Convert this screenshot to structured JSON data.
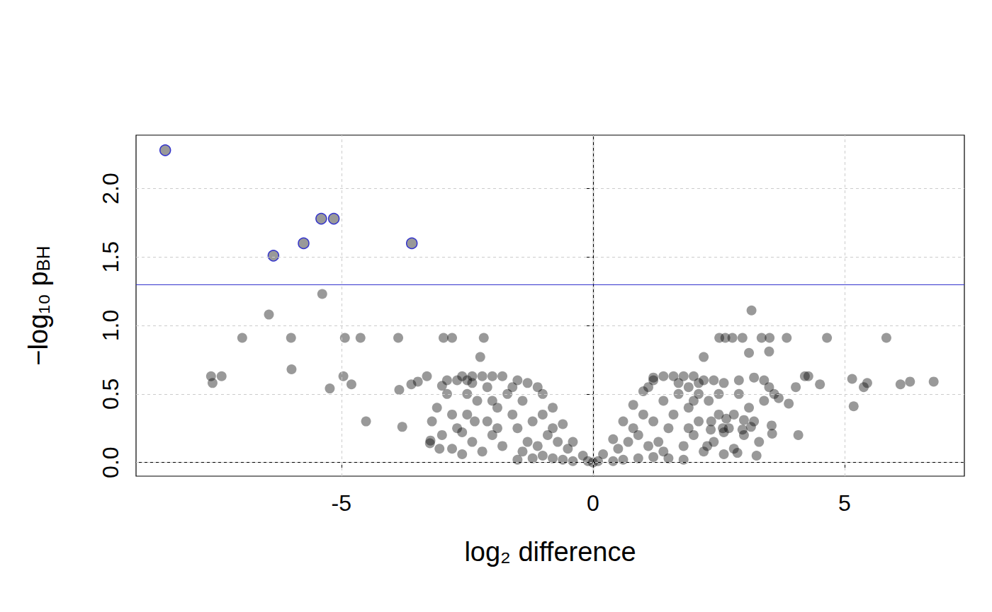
{
  "chart_data": {
    "type": "scatter",
    "xlabel": "log₂ difference",
    "ylabel": {
      "text": "−log₁₀ p",
      "subscript": "BH"
    },
    "xlim": [
      -9.08,
      7.38
    ],
    "xticks": [
      -5,
      0,
      5
    ],
    "ylim": [
      -0.1,
      2.39
    ],
    "yticks": [
      {
        "value": 0,
        "label": "0.0"
      },
      {
        "value": 0.5,
        "label": "0.5"
      },
      {
        "value": 1,
        "label": "1.0"
      },
      {
        "value": 1.5,
        "label": "1.5"
      },
      {
        "value": 2,
        "label": "2.0"
      }
    ],
    "grid": true,
    "threshold": {
      "y": 1.3,
      "color": "#3333cc"
    },
    "series": [
      {
        "color": "#000000",
        "marker": "circle",
        "x": [
          -6.44,
          -5.38,
          -6.97,
          -6.0,
          -4.93,
          -4.62,
          -3.87,
          -2.97,
          -2.8,
          -2.17,
          -2.24,
          -7.59,
          -7.56,
          -7.38,
          -5.99,
          -5.23,
          -4.96,
          -4.8,
          -4.51,
          -3.79,
          -3.85,
          -3.61,
          -3.48,
          -3.3,
          -3.23,
          -3.24,
          3.15,
          4.65,
          5.83,
          2.97,
          3.35,
          3.51,
          3.85,
          2.63,
          2.77,
          2.51,
          2.2,
          3.5,
          3.1,
          4.21,
          4.28,
          4.51,
          5.15,
          5.45,
          5.38,
          6.11,
          6.3,
          6.77,
          5.18,
          4.08,
          3.56,
          3.55,
          3.25,
          2.87,
          3.89,
          3.69,
          4.03,
          3.14,
          3.0,
          2.97,
          2.65,
          2.58,
          2.34,
          2.27,
          -0.2,
          -0.4,
          -0.6,
          -0.8,
          -1.0,
          -1.1,
          -1.3,
          -1.5,
          -1.8,
          -2.0,
          -2.2,
          -2.4,
          -2.6,
          -2.7,
          -2.5,
          0.2,
          0.4,
          0.6,
          0.8,
          1.0,
          1.1,
          1.2,
          1.4,
          1.6,
          1.8,
          2.0,
          1.7,
          2.2,
          2.4,
          2.6,
          2.9,
          3.2,
          3.4,
          1.9,
          2.1,
          -1.5,
          -1.2,
          -1.0,
          -0.8,
          -0.6,
          -0.4,
          0.4,
          0.6,
          0.9,
          1.2,
          1.5,
          1.8,
          -0.1,
          0.1,
          0,
          -0.9,
          -1.2,
          -1.0,
          -1.4,
          -1.6,
          -1.3,
          -1.7,
          -1.9,
          -2.1,
          -2.3,
          -2.0,
          -2.5,
          -2.7,
          -2.9,
          -3.1,
          -2.8,
          -2.4,
          -1.8,
          -2.2,
          -2.6,
          -3.0,
          -3.0,
          -2.9,
          -1.6,
          -2.1,
          -0.7,
          -0.5,
          -1.1,
          -1.5,
          -0.8,
          -1.9,
          -2.5,
          -2.8,
          -3.2,
          -2.4,
          -1.4,
          -2.0,
          -2.6,
          -3.05,
          -2.35,
          0.9,
          1.2,
          1.0,
          1.4,
          1.6,
          1.3,
          1.7,
          1.9,
          2.1,
          2.3,
          2.0,
          2.5,
          2.7,
          2.9,
          3.1,
          2.8,
          2.4,
          1.8,
          2.2,
          2.6,
          3.0,
          0.7,
          0.5,
          1.1,
          1.5,
          0.8,
          1.9,
          2.5,
          2.8,
          3.2,
          3.4,
          3.6,
          3.5,
          1.4,
          2.0,
          2.6,
          2.35,
          3.3,
          1.2,
          2.1
        ],
        "y": [
          1.08,
          1.23,
          0.91,
          0.91,
          0.91,
          0.91,
          0.91,
          0.91,
          0.91,
          0.91,
          0.77,
          0.63,
          0.58,
          0.63,
          0.68,
          0.54,
          0.63,
          0.57,
          0.3,
          0.26,
          0.53,
          0.57,
          0.59,
          0.63,
          0.16,
          0.14,
          1.11,
          0.91,
          0.91,
          0.91,
          0.91,
          0.91,
          0.91,
          0.91,
          0.91,
          0.91,
          0.77,
          0.81,
          0.8,
          0.63,
          0.63,
          0.57,
          0.61,
          0.58,
          0.55,
          0.57,
          0.59,
          0.59,
          0.41,
          0.2,
          0.21,
          0.27,
          0.05,
          0.07,
          0.43,
          0.47,
          0.55,
          0.26,
          0.31,
          0.24,
          0.32,
          0.25,
          0.24,
          0.12,
          0.05,
          0.15,
          0.28,
          0.4,
          0.5,
          0.55,
          0.58,
          0.6,
          0.63,
          0.63,
          0.63,
          0.63,
          0.63,
          0.6,
          0.6,
          0.06,
          0.17,
          0.3,
          0.42,
          0.52,
          0.55,
          0.6,
          0.63,
          0.63,
          0.63,
          0.63,
          0.58,
          0.6,
          0.6,
          0.58,
          0.6,
          0.62,
          0.6,
          0.55,
          0.5,
          0.02,
          0.03,
          0.05,
          0.03,
          0.02,
          0.01,
          0.01,
          0.02,
          0.03,
          0.04,
          0.03,
          0.02,
          0.01,
          0.01,
          0.0,
          0.2,
          0.3,
          0.35,
          0.45,
          0.35,
          0.15,
          0.5,
          0.4,
          0.3,
          0.45,
          0.2,
          0.35,
          0.25,
          0.5,
          0.4,
          0.1,
          0.15,
          0.12,
          0.08,
          0.06,
          0.2,
          0.56,
          0.6,
          0.55,
          0.55,
          0.15,
          0.1,
          0.12,
          0.25,
          0.25,
          0.25,
          0.5,
          0.35,
          0.3,
          0.58,
          0.08,
          0.45,
          0.22,
          0.1,
          0.3,
          0.2,
          0.3,
          0.35,
          0.45,
          0.35,
          0.15,
          0.5,
          0.4,
          0.3,
          0.45,
          0.2,
          0.35,
          0.25,
          0.5,
          0.4,
          0.1,
          0.15,
          0.12,
          0.08,
          0.06,
          0.2,
          0.15,
          0.1,
          0.12,
          0.25,
          0.25,
          0.25,
          0.5,
          0.35,
          0.3,
          0.45,
          0.5,
          0.55,
          0.08,
          0.45,
          0.22,
          0.3,
          0.15,
          0.62,
          0.58
        ]
      },
      {
        "color": "#999999",
        "marker": "outlined",
        "x": [
          -8.5,
          -6.35,
          -5.75,
          -5.4,
          -5.15,
          -3.6
        ],
        "y": [
          2.28,
          1.51,
          1.6,
          1.78,
          1.78,
          1.6
        ]
      }
    ]
  }
}
